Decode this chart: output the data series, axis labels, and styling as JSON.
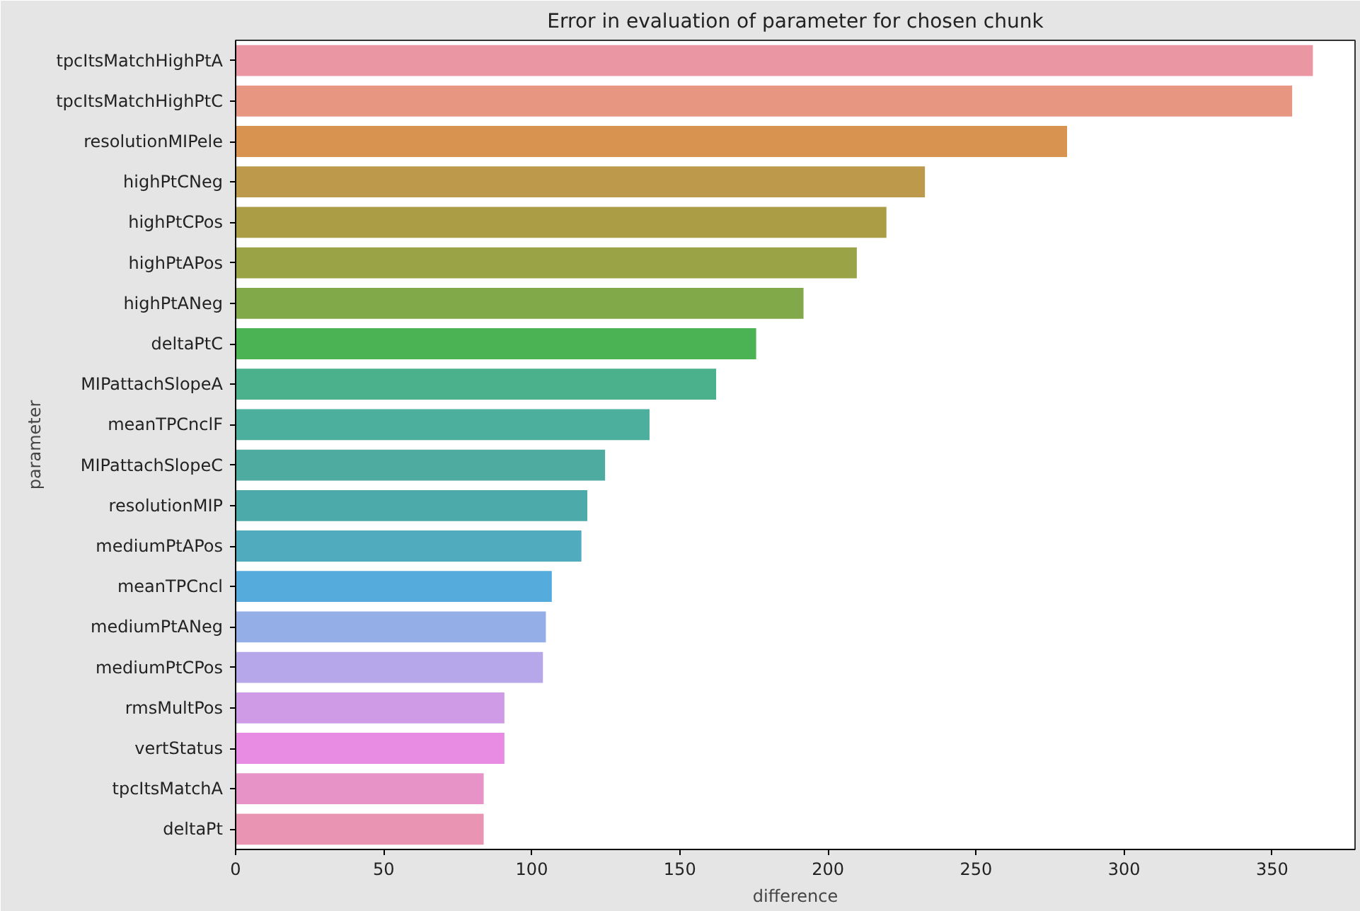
{
  "chart_data": {
    "type": "bar",
    "orientation": "horizontal",
    "title": "Error in evaluation of parameter for chosen chunk",
    "xlabel": "difference",
    "ylabel": "parameter",
    "categories": [
      "tpcItsMatchHighPtA",
      "tpcItsMatchHighPtC",
      "resolutionMIPele",
      "highPtCNeg",
      "highPtCPos",
      "highPtAPos",
      "highPtANeg",
      "deltaPtC",
      "MIPattachSlopeA",
      "meanTPCnclF",
      "MIPattachSlopeC",
      "resolutionMIP",
      "mediumPtAPos",
      "meanTPCncl",
      "mediumPtANeg",
      "mediumPtCPos",
      "rmsMultPos",
      "vertStatus",
      "tpcItsMatchA",
      "deltaPt"
    ],
    "values": [
      364,
      357,
      281,
      233,
      220,
      210,
      192,
      176,
      162.5,
      140,
      125,
      119,
      117,
      107,
      105,
      104,
      91,
      91,
      84,
      84
    ],
    "colors": [
      "#ea96a3",
      "#e79682",
      "#d89350",
      "#bd9a4b",
      "#ab9c46",
      "#9aa446",
      "#81a94a",
      "#4bb354",
      "#4bb08c",
      "#4cae9c",
      "#4dab9f",
      "#4daaab",
      "#50abbf",
      "#55abdc",
      "#94aee8",
      "#b6a6ea",
      "#cf9be6",
      "#e78be3",
      "#e893c8",
      "#e994b3"
    ],
    "xlim": [
      0,
      378
    ],
    "xticks": [
      0,
      50,
      100,
      150,
      200,
      250,
      300,
      350
    ],
    "grid": false
  }
}
